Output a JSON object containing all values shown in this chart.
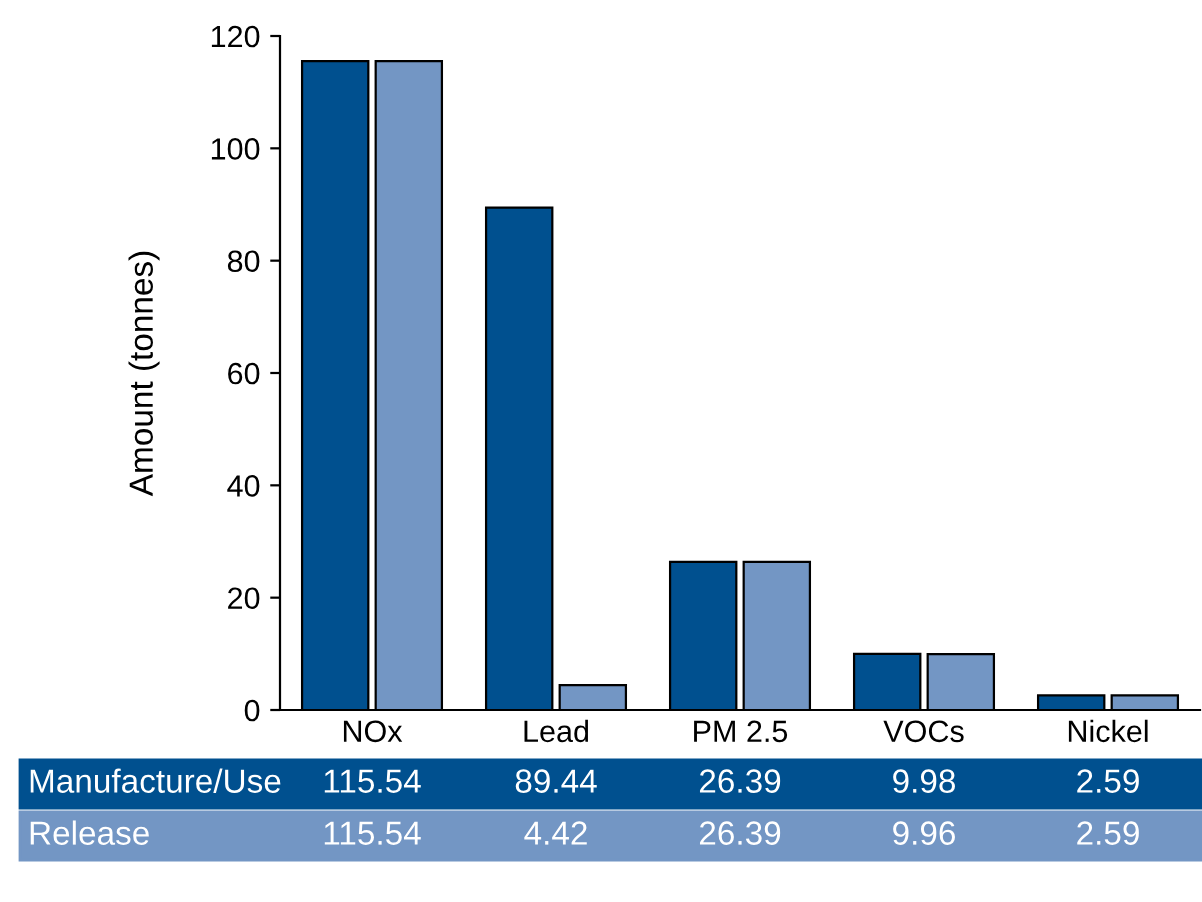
{
  "chart_data": {
    "type": "bar",
    "ylabel": "Amount (tonnes)",
    "categories": [
      "NOx",
      "Lead",
      "PM 2.5",
      "VOCs",
      "Nickel"
    ],
    "series": [
      {
        "name": "Manufacture/Use",
        "color": "#00508f",
        "values": [
          115.54,
          89.44,
          26.39,
          9.98,
          2.59
        ]
      },
      {
        "name": "Release",
        "color": "#7396c4",
        "values": [
          115.54,
          4.42,
          26.39,
          9.96,
          2.59
        ]
      }
    ],
    "ylim": [
      0,
      120
    ],
    "yticks": [
      0,
      20,
      40,
      60,
      80,
      100,
      120
    ],
    "grid": false,
    "legend": false,
    "data_labels": true
  }
}
